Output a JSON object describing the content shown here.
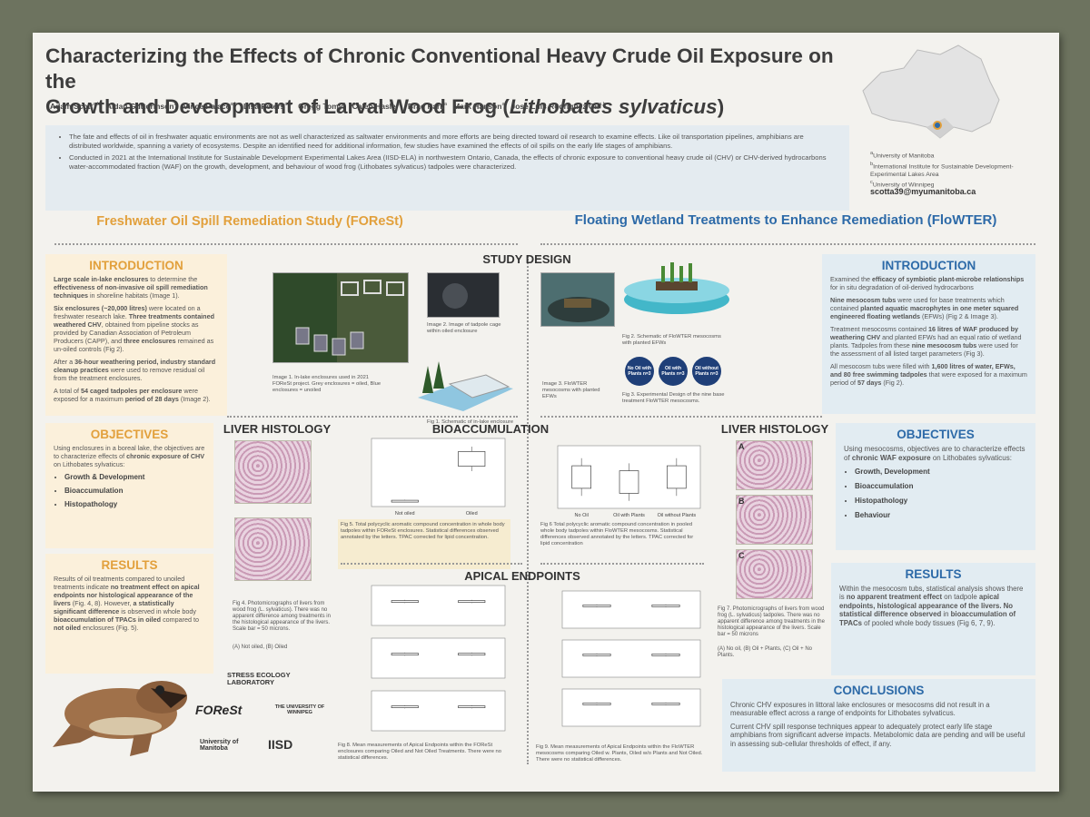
{
  "header": {
    "title_line1": "Characterizing the Effects of Chronic Conventional Heavy Crude Oil Exposure on the",
    "title_line2": "Growth and Development of Larval Wood Frog (",
    "title_species": "Lithobates sylvaticus",
    "title_end": ")",
    "authors": [
      {
        "name": "Adam Scott",
        "sup": "a,b"
      },
      {
        "name": "Aidan Guttormson",
        "sup": "a"
      },
      {
        "name": "Vince Palace",
        "sup": "a,b"
      },
      {
        "name": "Lisa Peters",
        "sup": "a,b"
      },
      {
        "name": "Gregg Tomy",
        "sup": "a"
      },
      {
        "name": "Caleb Hasler",
        "sup": "c"
      },
      {
        "name": "Brad Park",
        "sup": "a"
      },
      {
        "name": "Mark Hanson",
        "sup": "a"
      },
      {
        "name": "Jose Luis Rodriguez Gil",
        "sup": "a,b"
      }
    ],
    "intro_bullets": [
      "The fate and effects of oil in freshwater aquatic environments are not as well characterized as saltwater environments and more efforts are being directed toward oil research to examine effects. Like oil transportation pipelines, amphibians are distributed worldwide, spanning a variety of ecosystems. Despite an identified need for additional information, few studies have examined the effects of oil spills on the early life stages of amphibians.",
      "Conducted in 2021 at the International Institute for Sustainable Development Experimental Lakes Area (IISD-ELA) in northwestern Ontario, Canada, the effects of chronic exposure to conventional heavy crude oil (CHV) or CHV-derived hydrocarbons water-accommodated fraction (WAF) on the growth, development, and behaviour of wood frog (Lithobates sylvaticus) tadpoles were characterized."
    ],
    "affiliations": [
      {
        "sup": "a",
        "text": "University of Manitoba"
      },
      {
        "sup": "b",
        "text": "International Institute for Sustainable Development-Experimental Lakes Area"
      },
      {
        "sup": "c",
        "text": "University of Winnipeg"
      }
    ],
    "email": "scotta39@myumanitoba.ca"
  },
  "forest": {
    "heading": "Freshwater Oil Spill Remediation Study (FOReSt)",
    "intro": {
      "title": "INTRODUCTION",
      "paragraphs": [
        [
          {
            "b": "Large scale in-lake enclosures"
          },
          " to determine the ",
          {
            "b": "effectiveness of non-invasive oil spill remediation techniques"
          },
          " in shoreline habitats (Image 1)."
        ],
        [
          {
            "b": "Six enclosures (~20,000 litres)"
          },
          " were located on a freshwater research lake. ",
          {
            "b": "Three treatments contained weathered CHV"
          },
          ", obtained from pipeline stocks as provided by Canadian Association of Petroleum Producers (CAPP), and ",
          {
            "b": "three enclosures"
          },
          " remained as un-oiled controls (Fig 2)."
        ],
        [
          "After a ",
          {
            "b": "36-hour weathering period, industry standard cleanup practices"
          },
          " were used to remove residual oil from the treatment enclosures."
        ],
        [
          "A total of ",
          {
            "b": "54 caged tadpoles per enclosure"
          },
          " were exposed for a maximum ",
          {
            "b": "period of 28 days"
          },
          " (Image 2)."
        ]
      ]
    },
    "objectives": {
      "title": "OBJECTIVES",
      "paragraph": [
        "Using enclosures in a boreal lake, the objectives are to characterize effects of ",
        {
          "b": "chronic exposure of CHV"
        },
        " on Lithobates sylvaticus:"
      ],
      "bullets": [
        "Growth & Development",
        "Bioaccumulation",
        "Histopathology"
      ]
    },
    "results": {
      "title": "RESULTS",
      "paragraph": [
        "Results of oil treatments compared to unoiled treatments indicate ",
        {
          "b": "no treatment effect on apical endpoints nor histological appearance of the livers"
        },
        " (Fig. 4, 8). However, ",
        {
          "b": "a statistically significant difference"
        },
        " is observed in whole body ",
        {
          "b": "bioaccumulation of TPACs in oiled"
        },
        " compared to ",
        {
          "b": "not oiled"
        },
        " enclosures (Fig. 5)."
      ]
    }
  },
  "flowter": {
    "heading": "Floating Wetland Treatments to Enhance Remediation (FloWTER)",
    "intro": {
      "title": "INTRODUCTION",
      "paragraphs": [
        [
          "Examined the ",
          {
            "b": "efficacy of symbiotic plant-microbe relationships"
          },
          " for in situ degradation of oil-derived hydrocarbons"
        ],
        [
          {
            "b": "Nine mesocosm tubs"
          },
          " were used for base treatments which contained ",
          {
            "b": "planted aquatic macrophytes in one meter squared engineered floating wetlands"
          },
          " (EFWs) (Fig 2 & Image 3)."
        ],
        [
          "Treatment mesocosms contained ",
          {
            "b": "16 litres of WAF produced by weathering CHV"
          },
          " and planted EFWs had an equal ratio of wetland plants. Tadpoles from these ",
          {
            "b": "nine mesocosm tubs"
          },
          " were used for the assessment of all listed target parameters (Fig 3)."
        ],
        [
          "All mesocosm tubs were filled with ",
          {
            "b": "1,600 litres of water, EFWs, and 80 free swimming tadpoles"
          },
          " that were exposed for a maximum period of ",
          {
            "b": "57 days"
          },
          " (Fig 2)."
        ]
      ]
    },
    "objectives": {
      "title": "OBJECTIVES",
      "paragraph": [
        "Using mesocosms, objectives are to characterize effects of ",
        {
          "b": "chronic WAF exposure"
        },
        " on Lithobates sylvaticus:"
      ],
      "bullets": [
        "Growth, Development",
        "Bioaccumulation",
        "Histopathology",
        "Behaviour"
      ]
    },
    "results": {
      "title": "RESULTS",
      "paragraph": [
        "Within the mesocosm tubs, statistical analysis shows there is ",
        {
          "b": "no apparent treatment effect"
        },
        " on tadpole ",
        {
          "b": "apical endpoints, histological appearance of the livers. No statistical difference observed"
        },
        " in ",
        {
          "b": "bioaccumulation of TPACs"
        },
        " of pooled whole body tissues (Fig 6, 7, 9)."
      ]
    },
    "conclusions": {
      "title": "CONCLUSIONS",
      "paragraphs": [
        "Chronic CHV exposures in littoral lake enclosures or mesocosms did not result in a measurable effect across a range of endpoints for Lithobates sylvaticus.",
        "Current CHV spill response techniques appear to adequately protect early life stage amphibians from significant adverse impacts. Metabolomic data are pending and will be useful in assessing sub-cellular thresholds of effect, if any."
      ]
    }
  },
  "study_design": {
    "title": "STUDY DESIGN",
    "image1_caption": "Image 1. In-lake enclosures used in 2021 FOReSt project. Grey enclosures = oiled, Blue enclosures = unoiled",
    "image2_caption": "Image 2. Image of tadpole cage within oiled enclosure",
    "fig1_caption": "Fig 1. Schematic of in-lake enclosure",
    "fig2_caption": "Fig 2. Schematic of FloWTER mesocosms with planted EFWs",
    "image3_caption": "Image 3. FloWTER mesocosms with planted EFWs",
    "treatments": [
      "No Oil with Plants n=3",
      "Oil with Plants n=3",
      "Oil without Plants n=3"
    ],
    "fig3_caption": "Fig 3. Experimental Design of the nine base treatment FloWTER mesocosms."
  },
  "figures": {
    "liver_title": "LIVER HISTOLOGY",
    "bioaccumulation_title": "BIOACCUMULATION",
    "apical_title": "APICAL ENDPOINTS",
    "panel_labels": [
      "A",
      "B",
      "C"
    ],
    "fig4_caption": "Fig 4. Photomicrographs of livers from wood frog (L. sylvaticus). There was no apparent difference among treatments in the histological appearance of the livers. Scale bar = 50 microns.",
    "fig4_key": "(A) Not oiled, (B) Oiled",
    "fig5_categories": [
      "Not oiled",
      "Oiled"
    ],
    "fig5_caption": "Fig 5. Total polycyclic aromatic compound concentration in whole body tadpoles within FOReSt enclosures. Statistical differences observed annotated by the letters. TPAC corrected for lipid concentration.",
    "fig6_categories": [
      "No Oil",
      "Oil with Plants",
      "Oil without Plants"
    ],
    "fig6_caption": "Fig 6 Total polycyclic aromatic compound concentration in pooled whole body tadpoles within FloWTER mesocosms. Statistical differences observed annotated by the letters. TPAC corrected for lipid concentration",
    "fig7_caption": "Fig 7. Photomicrographs of livers from wood frog (L. sylvaticus) tadpoles. There was no apparent difference among treatments in the histological appearance of the livers. Scale bar = 50 microns",
    "fig7_key": "(A) No oil, (B) Oil + Plants, (C) Oil + No Plants.",
    "fig8_caption": "Fig 8. Mean measurements of Apical Endpoints within the FOReSt enclosures comparing Oiled and Not Oiled Treatments. There were no statistical differences.",
    "fig9_caption": "Fig 9. Mean measurements of Apical Endpoints within the FloWTER mesocosms comparing Oiled w. Plants, Oiled w/o Plants and Not Oiled. There were no statistical differences."
  },
  "logos": {
    "stress": "STRESS ECOLOGY LABORATORY",
    "forest": "FOReSt",
    "winnipeg": "THE UNIVERSITY OF WINNIPEG",
    "manitoba": "University of Manitoba",
    "iisd": "IISD"
  }
}
